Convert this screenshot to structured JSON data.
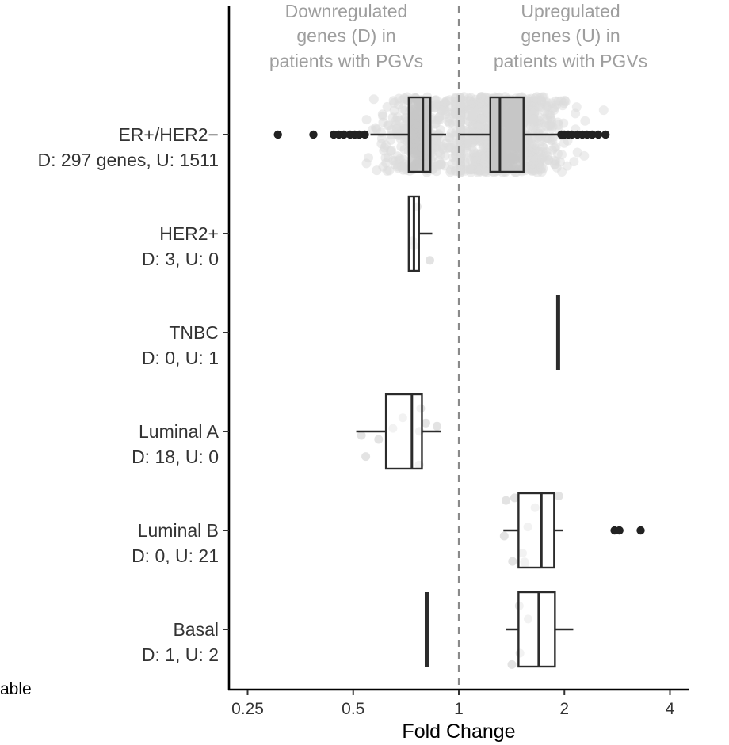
{
  "chart_data": {
    "type": "boxplot",
    "x_scale": "log2",
    "xlim": [
      0.2,
      5.0
    ],
    "xticks": [
      0.25,
      0.5,
      1,
      2,
      4
    ],
    "xtick_labels": [
      "0.25",
      "0.5",
      "1",
      "2",
      "4"
    ],
    "xlabel": "Fold Change",
    "reference_line": {
      "x": 1,
      "style": "dashed",
      "color": "#8a8a8a"
    },
    "region_labels": {
      "down": [
        "Downregulated",
        "genes (D) in",
        "patients with PGVs"
      ],
      "up": [
        "Upregulated",
        "genes (U) in",
        "patients with PGVs"
      ]
    },
    "stray_text": "able",
    "colors": {
      "box_filled": "#bfbfbf",
      "box_empty": "#ffffff",
      "stroke": "#2b2b2b",
      "jitter": "#dcdcdc",
      "outlier": "#222222"
    },
    "groups": [
      {
        "name": "ER+/HER2−",
        "counts": "D: 297 genes, U: 1511",
        "filled": true,
        "jitter_density": "dense",
        "boxes": [
          {
            "whisker_low": 0.56,
            "q1": 0.72,
            "median": 0.79,
            "q3": 0.83,
            "whisker_high": 0.92
          },
          {
            "whisker_low": 1.01,
            "q1": 1.23,
            "median": 1.31,
            "q3": 1.53,
            "whisker_high": 1.95
          }
        ],
        "outliers": [
          0.305,
          0.385,
          0.44,
          0.455,
          0.47,
          0.49,
          0.505,
          0.52,
          0.54,
          1.96,
          2.0,
          2.05,
          2.1,
          2.18,
          2.25,
          2.32,
          2.4,
          2.5,
          2.62
        ]
      },
      {
        "name": "HER2+",
        "counts": "D: 3, U: 0",
        "filled": false,
        "jitter_density": "sparse",
        "boxes": [
          {
            "whisker_low": 0.72,
            "q1": 0.72,
            "median": 0.745,
            "q3": 0.77,
            "whisker_high": 0.84
          }
        ],
        "outliers": []
      },
      {
        "name": "TNBC",
        "counts": "D: 0, U: 1",
        "filled": false,
        "jitter_density": "none",
        "boxes": [
          {
            "whisker_low": 1.92,
            "q1": 1.92,
            "median": 1.92,
            "q3": 1.92,
            "whisker_high": 1.92
          }
        ],
        "outliers": []
      },
      {
        "name": "Luminal A",
        "counts": "D: 18, U: 0",
        "filled": false,
        "jitter_density": "medium",
        "boxes": [
          {
            "whisker_low": 0.51,
            "q1": 0.62,
            "median": 0.735,
            "q3": 0.785,
            "whisker_high": 0.89
          }
        ],
        "outliers": []
      },
      {
        "name": "Luminal B",
        "counts": "D: 0, U: 21",
        "filled": false,
        "jitter_density": "medium",
        "boxes": [
          {
            "whisker_low": 1.34,
            "q1": 1.48,
            "median": 1.72,
            "q3": 1.87,
            "whisker_high": 1.98
          }
        ],
        "outliers": [
          2.78,
          2.87,
          3.3
        ]
      },
      {
        "name": "Basal",
        "counts": "D: 1, U: 2",
        "filled": false,
        "jitter_density": "sparse",
        "boxes": [
          {
            "whisker_low": 0.81,
            "q1": 0.81,
            "median": 0.81,
            "q3": 0.81,
            "whisker_high": 0.81
          },
          {
            "whisker_low": 1.36,
            "q1": 1.48,
            "median": 1.69,
            "q3": 1.88,
            "whisker_high": 2.12
          }
        ],
        "outliers": []
      }
    ]
  }
}
